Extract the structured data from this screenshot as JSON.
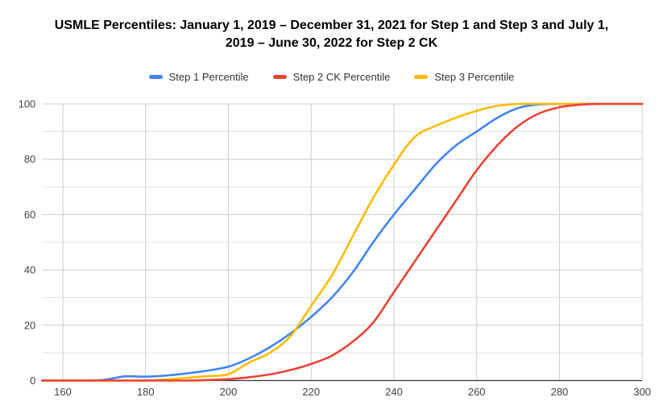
{
  "chart_data": {
    "type": "line",
    "title": "USMLE Percentiles: January 1, 2019 – December 31, 2021 for Step 1 and Step 3 and July 1, 2019 – June 30, 2022 for Step 2 CK",
    "title_lines": [
      "USMLE Percentiles: January 1, 2019 – December 31, 2021 for Step 1 and Step 3 and July 1,",
      "2019 – June 30, 2022 for Step 2 CK"
    ],
    "xlabel": "",
    "ylabel": "",
    "xlim": [
      155,
      300
    ],
    "ylim": [
      0,
      100
    ],
    "x_ticks": [
      160,
      180,
      200,
      220,
      240,
      260,
      280,
      300
    ],
    "y_ticks": [
      0,
      20,
      40,
      60,
      80,
      100
    ],
    "y_minor_ticks": [
      10,
      30,
      50,
      70,
      90
    ],
    "grid": true,
    "legend_position": "top",
    "x": [
      155,
      160,
      165,
      170,
      175,
      180,
      185,
      190,
      195,
      200,
      205,
      210,
      215,
      220,
      225,
      230,
      235,
      240,
      245,
      250,
      255,
      260,
      265,
      270,
      275,
      280,
      285,
      290,
      295,
      300
    ],
    "series": [
      {
        "name": "Step 1 Percentile",
        "color": "#4285F4",
        "values": [
          0,
          0,
          0,
          0.3,
          1.5,
          1.4,
          1.8,
          2.6,
          3.6,
          5,
          8,
          12,
          17,
          23,
          30,
          39,
          50,
          60,
          69,
          78,
          85,
          90,
          95,
          98.5,
          99.8,
          100,
          100,
          100,
          100,
          100
        ]
      },
      {
        "name": "Step 2 CK Percentile",
        "color": "#EA4335",
        "values": [
          0,
          0,
          0,
          0,
          0,
          0,
          0,
          0,
          0.2,
          0.5,
          1.2,
          2.2,
          3.8,
          6,
          9,
          14,
          21,
          32,
          43,
          54,
          65,
          76,
          85,
          92,
          96.5,
          98.8,
          99.7,
          100,
          100,
          100
        ]
      },
      {
        "name": "Step 3 Percentile",
        "color": "#FBBC04",
        "values": [
          0,
          0,
          0,
          0,
          0,
          0,
          0.4,
          1,
          1.6,
          2.3,
          6.5,
          10,
          16,
          27,
          38,
          52,
          66,
          78,
          88,
          92,
          95,
          97.5,
          99.3,
          100,
          100,
          100,
          100,
          100,
          100,
          100
        ]
      }
    ]
  },
  "colors": {
    "grid_major": "#cfcfcf",
    "grid_minor": "#e3e3e3",
    "axis": "#333333",
    "tick_label": "#424242",
    "title": "#000000",
    "legend_text": "#333333"
  }
}
